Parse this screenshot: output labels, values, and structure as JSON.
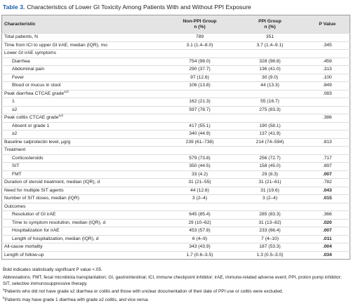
{
  "title": {
    "label": "Table 3.",
    "text": "Characteristics of Lower GI Toxicity Among Patients With and Without PPI Exposure"
  },
  "table": {
    "header": {
      "characteristic": "Characteristic",
      "non_ppi": [
        "Non-PPI Group",
        "n (%)"
      ],
      "ppi": [
        "PPI Group",
        "n (%)"
      ],
      "p": "P Value"
    },
    "rows": [
      {
        "label": "Total patients, N",
        "non_ppi": "789",
        "ppi": "351"
      },
      {
        "label": "Time from ICI to upper GI irAE, median (IQR), mo",
        "non_ppi": "3.1 (1.4–8.0)",
        "ppi": "3.7 (1.4–9.1)",
        "p": ".345"
      },
      {
        "label": "Lower GI irAE symptoms",
        "items": [
          {
            "label": "Diarrhea",
            "non_ppi": "754 (98.0)",
            "ppi": "328 (98.8)",
            "p": ".459"
          },
          {
            "label": "Abdominal pain",
            "non_ppi": "290 (37.7)",
            "ppi": "136 (41.0)",
            "p": ".313"
          },
          {
            "label": "Fever",
            "non_ppi": "97 (12.6)",
            "ppi": "30 (9.0)",
            "p": ".100"
          },
          {
            "label": "Blood or mucus in stool",
            "non_ppi": "106 (13.8)",
            "ppi": "44 (13.3)",
            "p": ".849"
          }
        ]
      },
      {
        "label": "Peak diarrhea CTCAE grade",
        "sup": "a,b",
        "p": ".083",
        "items": [
          {
            "label": "1",
            "non_ppi": "162 (21.3)",
            "ppi": "55 (16.7)"
          },
          {
            "label": "≥2",
            "non_ppi": "597 (78.7)",
            "ppi": "275 (83.3)"
          }
        ]
      },
      {
        "label": "Peak colitis CTCAE grade",
        "sup": "a,b",
        "p": ".386",
        "items": [
          {
            "label": "Absent or grade 1",
            "non_ppi": "417 (55.1)",
            "ppi": "190 (58.1)"
          },
          {
            "label": "≥2",
            "non_ppi": "340 (44.9)",
            "ppi": "137 (41.9)"
          }
        ]
      },
      {
        "label": "Baseline calprotectin level, μg/g",
        "non_ppi": "239 (61–738)",
        "ppi": "214 (74–594)",
        "p": ".813"
      },
      {
        "label": "Treatment",
        "items": [
          {
            "label": "Corticosteroids",
            "non_ppi": "579 (73.8)",
            "ppi": "256 (72.7)",
            "p": ".717"
          },
          {
            "label": "SIT",
            "non_ppi": "350 (44.5)",
            "ppi": "158 (45.0)",
            "p": ".897"
          },
          {
            "label": "FMT",
            "non_ppi": "33 (4.2)",
            "ppi": "29 (8.3)",
            "p": ".007",
            "significant": true
          }
        ]
      },
      {
        "label": "Duration of steroid treatment, median (IQR), d",
        "non_ppi": "31 (21–55)",
        "ppi": "31 (21–61)",
        "p": ".782"
      },
      {
        "label": "Need for multiple SIT agents",
        "non_ppi": "44 (12.6)",
        "ppi": "31 (19.6)",
        "p": ".043",
        "significant": true
      },
      {
        "label": "Number of SIT doses, median (IQR)",
        "non_ppi": "3 (2–4)",
        "ppi": "3 (2–4)",
        "p": ".015",
        "significant": true
      },
      {
        "label": "Outcomes",
        "items": [
          {
            "label": "Resolution of GI irAE",
            "non_ppi": "645 (85.4)",
            "ppi": "285 (83.3)",
            "p": ".366"
          },
          {
            "label": "Time to symptom resolution, median (IQR), d",
            "non_ppi": "29 (10–62)",
            "ppi": "31 (13–82)",
            "p": ".020",
            "significant": true
          },
          {
            "label": "Hospitalization for irAE",
            "non_ppi": "453 (57.8)",
            "ppi": "233 (66.4)",
            "p": ".007",
            "significant": true
          },
          {
            "label": "Length of hospitalization, median (IQR), d",
            "non_ppi": "6 (4–9)",
            "ppi": "7 (4–10)",
            "p": ".011",
            "significant": true
          }
        ]
      },
      {
        "label": "All-cause mortality",
        "non_ppi": "343 (43.9)",
        "ppi": "187 (53.3)",
        "p": ".004",
        "significant": true
      },
      {
        "label": "Length of follow-up",
        "non_ppi": "1.7 (0.6–3.5)",
        "ppi": "1.3 (0.5–3.0)",
        "p": ".034",
        "significant": true
      }
    ]
  },
  "notes": {
    "bold": "Bold indicates statistically significant P value <.05.",
    "abbreviations": "Abbreviations: FMT, fecal microbiota transplantation; GI, gastrointestinal; ICI, immune checkpoint inhibitor; irAE, immune-related adverse event; PPI, proton pump inhibitor; SIT, selective immunosuppressive therapy.",
    "footnotes": [
      {
        "marker": "a",
        "text": "Patients who did not have grade ≥2 diarrhea or colitis and those with unclear documentation of their date of PPI use or colitis were excluded."
      },
      {
        "marker": "b",
        "text": "Patients may have grade 1 diarrhea with grade ≥2 colitis, and vice versa."
      }
    ]
  }
}
